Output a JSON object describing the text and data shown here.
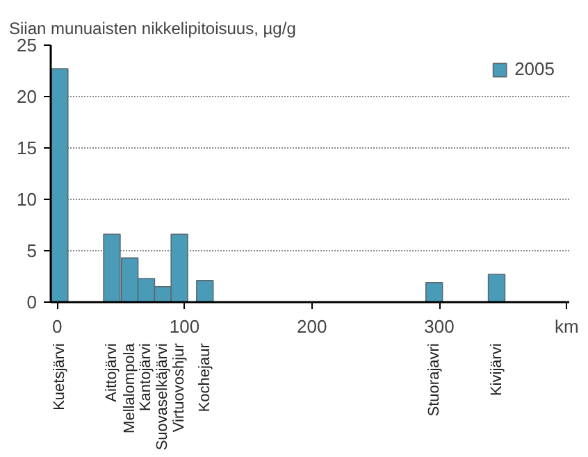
{
  "chart_data": {
    "type": "bar",
    "title": "Siian munuaisten nikkelipitoisuus, µg/g",
    "annotations": [
      "Kuetsjärvi",
      "Aittojärvi",
      "Mellalompola",
      "Kantojärvi",
      "Suovaselkäjärvi",
      "Virtuovoshjur",
      "Kochejaur",
      "Stuorajavri",
      "Kivijärvi"
    ],
    "x": [
      2,
      43,
      57,
      70,
      83,
      96,
      116,
      296,
      345
    ],
    "series": [
      {
        "name": "2005",
        "color": "#4a9bb8",
        "values": [
          22.7,
          6.6,
          4.3,
          2.3,
          1.5,
          6.6,
          2.1,
          1.9,
          2.7
        ]
      }
    ],
    "xlim": [
      -5,
      402
    ],
    "xticks": [
      0,
      100,
      200,
      300,
      {
        "value": 400,
        "label": "km"
      }
    ],
    "ylim": [
      0,
      25
    ],
    "yticks": [
      0,
      5,
      10,
      15,
      20,
      25
    ],
    "grid": "y",
    "legend": "top right"
  }
}
